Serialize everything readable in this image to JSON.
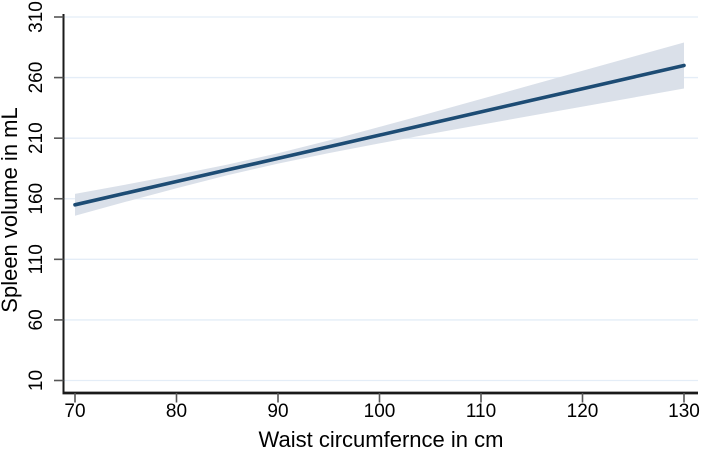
{
  "chart_data": {
    "type": "line",
    "title": "",
    "xlabel": "Waist circumfernce in cm",
    "ylabel": "Spleen volume in mL",
    "x_ticks": [
      70,
      80,
      90,
      100,
      110,
      120,
      130
    ],
    "y_ticks": [
      10,
      60,
      110,
      160,
      210,
      260,
      310
    ],
    "xlim": [
      68.9,
      131.4
    ],
    "ylim": [
      10,
      310
    ],
    "grid": "horizontal-only",
    "legend": "none",
    "series": [
      {
        "name": "linear-fit",
        "x": [
          70,
          75,
          80,
          85,
          90,
          95,
          100,
          105,
          110,
          115,
          120,
          125,
          130
        ],
        "y": [
          155.0,
          164.6,
          174.2,
          183.8,
          193.3,
          202.9,
          212.5,
          222.1,
          231.7,
          241.3,
          250.8,
          260.4,
          270.0
        ]
      }
    ],
    "ci_band": {
      "name": "confidence-interval",
      "x": [
        70,
        75,
        80,
        85,
        90,
        95,
        100,
        105,
        110,
        115,
        120,
        125,
        130
      ],
      "upper": [
        164.0,
        171.7,
        179.7,
        188.2,
        197.6,
        208.1,
        219.3,
        230.7,
        242.3,
        254.0,
        265.6,
        277.3,
        289.0
      ],
      "lower": [
        146.0,
        157.5,
        168.7,
        179.4,
        189.0,
        197.7,
        205.7,
        213.5,
        221.1,
        228.6,
        236.0,
        243.5,
        251.0
      ]
    },
    "colors": {
      "line": "#1d4c74",
      "band": "#dae0e9",
      "grid": "#e4edf7",
      "spine": "#1a1a1a",
      "tick": "#555555",
      "background": "#ffffff"
    }
  }
}
